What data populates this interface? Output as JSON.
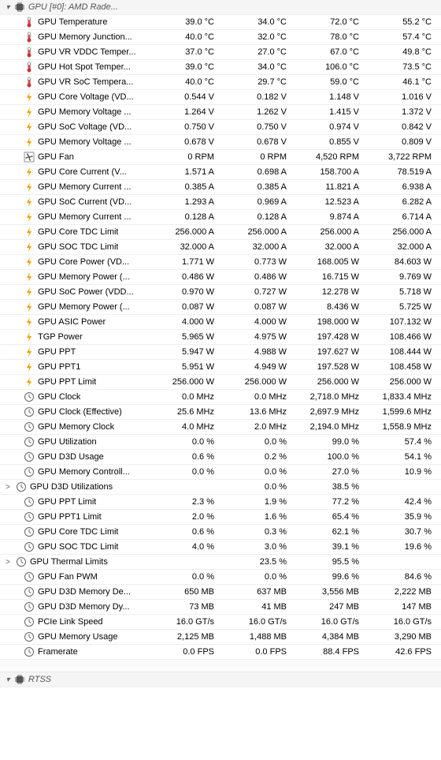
{
  "headers": {
    "gpu": "GPU [#0]: AMD Rade...",
    "rtss": "RTSS"
  },
  "rows": [
    {
      "icon": "temp",
      "label": "GPU Temperature",
      "v": [
        "39.0 °C",
        "34.0 °C",
        "72.0 °C",
        "55.2 °C"
      ]
    },
    {
      "icon": "temp",
      "label": "GPU Memory Junction...",
      "v": [
        "40.0 °C",
        "32.0 °C",
        "78.0 °C",
        "57.4 °C"
      ]
    },
    {
      "icon": "temp",
      "label": "GPU VR VDDC Temper...",
      "v": [
        "37.0 °C",
        "27.0 °C",
        "67.0 °C",
        "49.8 °C"
      ]
    },
    {
      "icon": "temp",
      "label": "GPU Hot Spot Temper...",
      "v": [
        "39.0 °C",
        "34.0 °C",
        "106.0 °C",
        "73.5 °C"
      ]
    },
    {
      "icon": "temp",
      "label": "GPU VR SoC Tempera...",
      "v": [
        "40.0 °C",
        "29.7 °C",
        "59.0 °C",
        "46.1 °C"
      ]
    },
    {
      "icon": "volt",
      "label": "GPU Core Voltage (VD...",
      "v": [
        "0.544 V",
        "0.182 V",
        "1.148 V",
        "1.016 V"
      ]
    },
    {
      "icon": "volt",
      "label": "GPU Memory Voltage ...",
      "v": [
        "1.264 V",
        "1.262 V",
        "1.415 V",
        "1.372 V"
      ]
    },
    {
      "icon": "volt",
      "label": "GPU SoC Voltage (VD...",
      "v": [
        "0.750 V",
        "0.750 V",
        "0.974 V",
        "0.842 V"
      ]
    },
    {
      "icon": "volt",
      "label": "GPU Memory Voltage ...",
      "v": [
        "0.678 V",
        "0.678 V",
        "0.855 V",
        "0.809 V"
      ]
    },
    {
      "icon": "fan",
      "label": "GPU Fan",
      "v": [
        "0 RPM",
        "0 RPM",
        "4,520 RPM",
        "3,722 RPM"
      ]
    },
    {
      "icon": "volt",
      "label": "GPU Core Current (V...",
      "v": [
        "1.571 A",
        "0.698 A",
        "158.700 A",
        "78.519 A"
      ]
    },
    {
      "icon": "volt",
      "label": "GPU Memory Current ...",
      "v": [
        "0.385 A",
        "0.385 A",
        "11.821 A",
        "6.938 A"
      ]
    },
    {
      "icon": "volt",
      "label": "GPU SoC Current (VD...",
      "v": [
        "1.293 A",
        "0.969 A",
        "12.523 A",
        "6.282 A"
      ]
    },
    {
      "icon": "volt",
      "label": "GPU Memory Current ...",
      "v": [
        "0.128 A",
        "0.128 A",
        "9.874 A",
        "6.714 A"
      ]
    },
    {
      "icon": "volt",
      "label": "GPU Core TDC Limit",
      "v": [
        "256.000 A",
        "256.000 A",
        "256.000 A",
        "256.000 A"
      ]
    },
    {
      "icon": "volt",
      "label": "GPU SOC TDC Limit",
      "v": [
        "32.000 A",
        "32.000 A",
        "32.000 A",
        "32.000 A"
      ]
    },
    {
      "icon": "volt",
      "label": "GPU Core Power (VD...",
      "v": [
        "1.771 W",
        "0.773 W",
        "168.005 W",
        "84.603 W"
      ]
    },
    {
      "icon": "volt",
      "label": "GPU Memory Power (...",
      "v": [
        "0.486 W",
        "0.486 W",
        "16.715 W",
        "9.769 W"
      ]
    },
    {
      "icon": "volt",
      "label": "GPU SoC Power (VDD...",
      "v": [
        "0.970 W",
        "0.727 W",
        "12.278 W",
        "5.718 W"
      ]
    },
    {
      "icon": "volt",
      "label": "GPU Memory Power (...",
      "v": [
        "0.087 W",
        "0.087 W",
        "8.436 W",
        "5.725 W"
      ]
    },
    {
      "icon": "volt",
      "label": "GPU ASIC Power",
      "v": [
        "4.000 W",
        "4.000 W",
        "198.000 W",
        "107.132 W"
      ]
    },
    {
      "icon": "volt",
      "label": "TGP Power",
      "v": [
        "5.965 W",
        "4.975 W",
        "197.428 W",
        "108.466 W"
      ]
    },
    {
      "icon": "volt",
      "label": "GPU PPT",
      "v": [
        "5.947 W",
        "4.988 W",
        "197.627 W",
        "108.444 W"
      ]
    },
    {
      "icon": "volt",
      "label": "GPU PPT1",
      "v": [
        "5.951 W",
        "4.949 W",
        "197.528 W",
        "108.458 W"
      ]
    },
    {
      "icon": "volt",
      "label": "GPU PPT Limit",
      "v": [
        "256.000 W",
        "256.000 W",
        "256.000 W",
        "256.000 W"
      ]
    },
    {
      "icon": "clock",
      "label": "GPU Clock",
      "v": [
        "0.0 MHz",
        "0.0 MHz",
        "2,718.0 MHz",
        "1,833.4 MHz"
      ]
    },
    {
      "icon": "clock",
      "label": "GPU Clock (Effective)",
      "v": [
        "25.6 MHz",
        "13.6 MHz",
        "2,697.9 MHz",
        "1,599.6 MHz"
      ]
    },
    {
      "icon": "clock",
      "label": "GPU Memory Clock",
      "v": [
        "4.0 MHz",
        "2.0 MHz",
        "2,194.0 MHz",
        "1,558.9 MHz"
      ]
    },
    {
      "icon": "clock",
      "label": "GPU Utilization",
      "v": [
        "0.0 %",
        "0.0 %",
        "99.0 %",
        "57.4 %"
      ]
    },
    {
      "icon": "clock",
      "label": "GPU D3D Usage",
      "v": [
        "0.6 %",
        "0.2 %",
        "100.0 %",
        "54.1 %"
      ]
    },
    {
      "icon": "clock",
      "label": "GPU Memory Controll...",
      "v": [
        "0.0 %",
        "0.0 %",
        "27.0 %",
        "10.9 %"
      ]
    },
    {
      "icon": "clock",
      "label": "GPU D3D Utilizations",
      "expand": ">",
      "v": [
        "",
        "0.0 %",
        "38.5 %",
        ""
      ]
    },
    {
      "icon": "clock",
      "label": "GPU PPT Limit",
      "v": [
        "2.3 %",
        "1.9 %",
        "77.2 %",
        "42.4 %"
      ]
    },
    {
      "icon": "clock",
      "label": "GPU PPT1 Limit",
      "v": [
        "2.0 %",
        "1.6 %",
        "65.4 %",
        "35.9 %"
      ]
    },
    {
      "icon": "clock",
      "label": "GPU Core TDC Limit",
      "v": [
        "0.6 %",
        "0.3 %",
        "62.1 %",
        "30.7 %"
      ]
    },
    {
      "icon": "clock",
      "label": "GPU SOC TDC Limit",
      "v": [
        "4.0 %",
        "3.0 %",
        "39.1 %",
        "19.6 %"
      ]
    },
    {
      "icon": "clock",
      "label": "GPU Thermal Limits",
      "expand": ">",
      "v": [
        "",
        "23.5 %",
        "95.5 %",
        ""
      ]
    },
    {
      "icon": "clock",
      "label": "GPU Fan PWM",
      "v": [
        "0.0 %",
        "0.0 %",
        "99.6 %",
        "84.6 %"
      ]
    },
    {
      "icon": "clock",
      "label": "GPU D3D Memory De...",
      "v": [
        "650 MB",
        "637 MB",
        "3,556 MB",
        "2,222 MB"
      ]
    },
    {
      "icon": "clock",
      "label": "GPU D3D Memory Dy...",
      "v": [
        "73 MB",
        "41 MB",
        "247 MB",
        "147 MB"
      ]
    },
    {
      "icon": "clock",
      "label": "PCIe Link Speed",
      "v": [
        "16.0 GT/s",
        "16.0 GT/s",
        "16.0 GT/s",
        "16.0 GT/s"
      ]
    },
    {
      "icon": "clock",
      "label": "GPU Memory Usage",
      "v": [
        "2,125 MB",
        "1,488 MB",
        "4,384 MB",
        "3,290 MB"
      ]
    },
    {
      "icon": "clock",
      "label": "Framerate",
      "v": [
        "0.0 FPS",
        "0.0 FPS",
        "88.4 FPS",
        "42.6 FPS"
      ]
    }
  ],
  "icons": {
    "temp_svg": "therm",
    "volt_svg": "bolt",
    "fan_svg": "fan",
    "clock_svg": "dial",
    "chip_svg": "chip"
  },
  "colors": {
    "temp": "#d03030",
    "volt": "#f0a000",
    "fan": "#404040",
    "clock": "#606060",
    "chip": "#404040"
  }
}
